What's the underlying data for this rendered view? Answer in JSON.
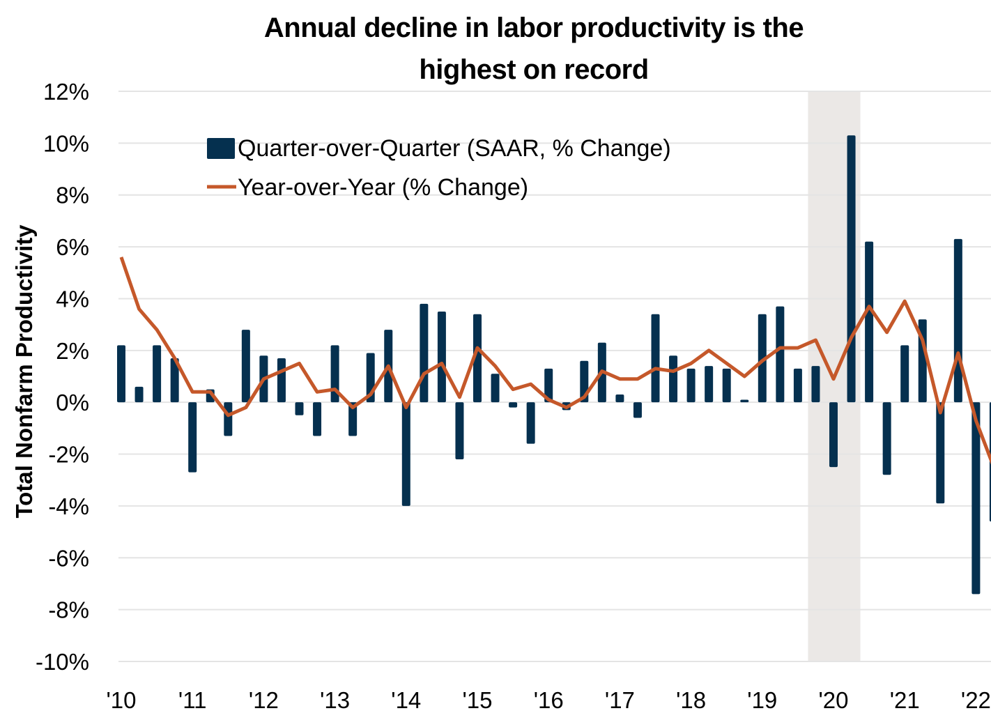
{
  "chart_data": {
    "type": "bar",
    "title_lines": [
      "Annual decline in labor productivity is the",
      "highest on record"
    ],
    "xlabel": "",
    "ylabel": "Total Nonfarm Productivity",
    "ylim": [
      -10,
      12
    ],
    "yticks": [
      12,
      10,
      8,
      6,
      4,
      2,
      0,
      -2,
      -4,
      -6,
      -8,
      -10
    ],
    "ytick_labels": [
      "12%",
      "10%",
      "8%",
      "6%",
      "4%",
      "2%",
      "0%",
      "-2%",
      "-4%",
      "-6%",
      "-8%",
      "-10%"
    ],
    "xtick_labels": [
      "'10",
      "'11",
      "'12",
      "'13",
      "'14",
      "'15",
      "'16",
      "'17",
      "'18",
      "'19",
      "'20",
      "'21",
      "'22"
    ],
    "grid": "horizontal",
    "legend_placement": "top-left",
    "colors": {
      "bar": "#05304f",
      "line": "#c5582a",
      "recession": "#ebe8e6",
      "grid": "#e4e4e4"
    },
    "recession_shading": {
      "start": "2019Q4",
      "end": "2020Q2"
    },
    "x": [
      "2010Q1",
      "2010Q2",
      "2010Q3",
      "2010Q4",
      "2011Q1",
      "2011Q2",
      "2011Q3",
      "2011Q4",
      "2012Q1",
      "2012Q2",
      "2012Q3",
      "2012Q4",
      "2013Q1",
      "2013Q2",
      "2013Q3",
      "2013Q4",
      "2014Q1",
      "2014Q2",
      "2014Q3",
      "2014Q4",
      "2015Q1",
      "2015Q2",
      "2015Q3",
      "2015Q4",
      "2016Q1",
      "2016Q2",
      "2016Q3",
      "2016Q4",
      "2017Q1",
      "2017Q2",
      "2017Q3",
      "2017Q4",
      "2018Q1",
      "2018Q2",
      "2018Q3",
      "2018Q4",
      "2019Q1",
      "2019Q2",
      "2019Q3",
      "2019Q4",
      "2020Q1",
      "2020Q2",
      "2020Q3",
      "2020Q4",
      "2021Q1",
      "2021Q2",
      "2021Q3",
      "2021Q4",
      "2022Q1",
      "2022Q2"
    ],
    "series": [
      {
        "name": "Quarter-over-Quarter (SAAR, % Change)",
        "type": "bar",
        "values": [
          2.2,
          0.6,
          2.2,
          1.7,
          -2.7,
          0.5,
          -1.3,
          2.8,
          1.8,
          1.7,
          -0.5,
          -1.3,
          2.2,
          -1.3,
          1.9,
          2.8,
          -4.0,
          3.8,
          3.5,
          -2.2,
          3.4,
          1.1,
          -0.2,
          -1.6,
          1.3,
          -0.3,
          1.6,
          2.3,
          0.3,
          -0.6,
          3.4,
          1.8,
          1.3,
          1.4,
          1.3,
          0.1,
          3.4,
          3.7,
          1.3,
          1.4,
          -2.5,
          10.3,
          6.2,
          -2.8,
          2.2,
          3.2,
          -3.9,
          6.3,
          -7.4,
          -4.6
        ]
      },
      {
        "name": "Year-over-Year (% Change)",
        "type": "line",
        "values": [
          5.6,
          3.6,
          2.8,
          1.7,
          0.4,
          0.4,
          -0.5,
          -0.2,
          0.9,
          1.2,
          1.5,
          0.4,
          0.5,
          -0.2,
          0.3,
          1.4,
          -0.2,
          1.1,
          1.5,
          0.2,
          2.1,
          1.4,
          0.5,
          0.7,
          0.1,
          -0.2,
          0.2,
          1.2,
          0.9,
          0.9,
          1.3,
          1.2,
          1.5,
          2.0,
          1.5,
          1.0,
          1.6,
          2.1,
          2.1,
          2.4,
          0.9,
          2.5,
          3.7,
          2.7,
          3.9,
          2.4,
          -0.4,
          1.9,
          -0.7,
          -2.5
        ]
      }
    ]
  }
}
